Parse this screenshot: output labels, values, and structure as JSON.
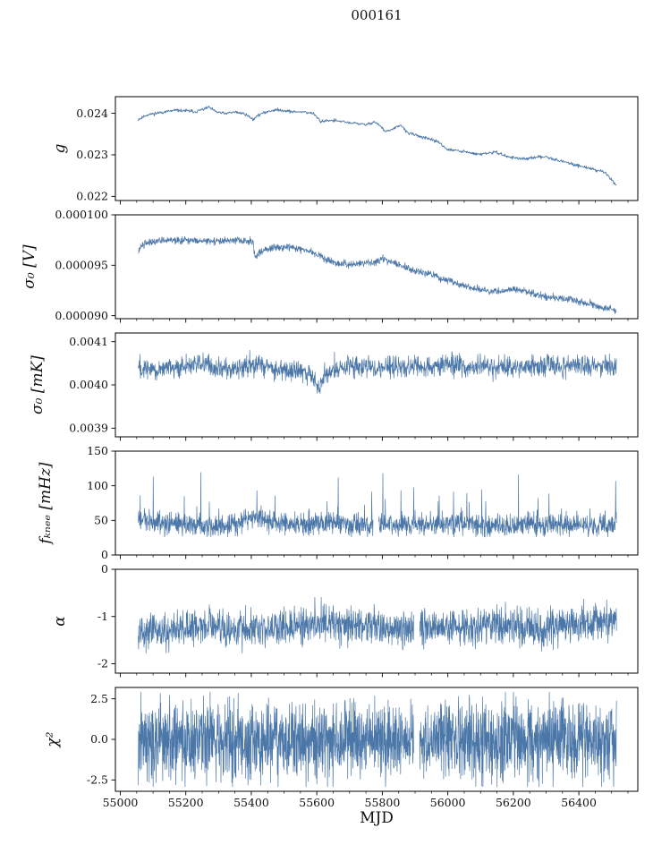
{
  "accent_color": "#4a76a8",
  "chart_data": {
    "type": "line",
    "title": "000161",
    "xlabel": "MJD",
    "legend": "none",
    "grid": false,
    "x_axis": {
      "xlim": [
        54985,
        56580
      ],
      "xticks": [
        55000,
        55200,
        55400,
        55600,
        55800,
        56000,
        56200,
        56400
      ],
      "xtick_labels": [
        "55000",
        "55200",
        "55400",
        "55600",
        "55800",
        "56000",
        "56200",
        "56400"
      ],
      "minor_step": 50,
      "data_range": [
        55055,
        56515
      ]
    },
    "panels": [
      {
        "name": "g",
        "ylabel": "g",
        "ylim": [
          0.0219,
          0.0244
        ],
        "yticks": [
          0.022,
          0.023,
          0.024
        ],
        "ytick_labels": [
          "0.022",
          "0.023",
          "0.024"
        ],
        "ylabel_x": 72,
        "trend_x": [
          55055,
          55080,
          55110,
          55140,
          55170,
          55200,
          55230,
          55255,
          55270,
          55290,
          55320,
          55350,
          55380,
          55405,
          55420,
          55445,
          55470,
          55500,
          55530,
          55560,
          55590,
          55612,
          55630,
          55660,
          55690,
          55720,
          55750,
          55775,
          55790,
          55810,
          55835,
          55855,
          55880,
          55910,
          55940,
          55970,
          56000,
          56030,
          56060,
          56090,
          56120,
          56150,
          56180,
          56210,
          56240,
          56270,
          56300,
          56330,
          56360,
          56390,
          56420,
          56450,
          56480,
          56500,
          56515
        ],
        "trend_y": [
          0.02385,
          0.02396,
          0.024,
          0.02404,
          0.02407,
          0.02406,
          0.02404,
          0.0241,
          0.02415,
          0.02404,
          0.02399,
          0.02403,
          0.02399,
          0.02385,
          0.02395,
          0.02403,
          0.02408,
          0.02407,
          0.02403,
          0.02404,
          0.02399,
          0.0238,
          0.02383,
          0.02382,
          0.02378,
          0.02376,
          0.02372,
          0.0238,
          0.02372,
          0.02356,
          0.02362,
          0.02372,
          0.02352,
          0.02346,
          0.02338,
          0.02332,
          0.02312,
          0.0231,
          0.02306,
          0.02301,
          0.02304,
          0.02306,
          0.02296,
          0.02292,
          0.0229,
          0.02294,
          0.02296,
          0.02288,
          0.02282,
          0.02276,
          0.0227,
          0.02264,
          0.02258,
          0.0224,
          0.02228
        ],
        "noise_sigma": 1.8e-05,
        "n_points": 900,
        "clip": [
          0.02195,
          0.02435
        ],
        "gaps": [],
        "seed": 11,
        "stroke_width": 0.9
      },
      {
        "name": "sigma0-v",
        "ylabel": "σ₀ [V]",
        "ylim": [
          8.97e-05,
          0.0001
        ],
        "yticks": [
          9e-05,
          9.5e-05,
          0.0001
        ],
        "ytick_labels": [
          "0.000090",
          "0.000095",
          "0.000100"
        ],
        "ylabel_x": 38,
        "trend_x": [
          55055,
          55062,
          55075,
          55100,
          55140,
          55180,
          55220,
          55260,
          55300,
          55340,
          55380,
          55404,
          55412,
          55425,
          55450,
          55480,
          55520,
          55555,
          55585,
          55610,
          55635,
          55660,
          55700,
          55740,
          55775,
          55800,
          55830,
          55860,
          55890,
          55920,
          55950,
          55980,
          56010,
          56040,
          56070,
          56100,
          56130,
          56160,
          56190,
          56220,
          56250,
          56280,
          56310,
          56340,
          56370,
          56400,
          56430,
          56460,
          56485,
          56515
        ],
        "trend_y": [
          9.62e-05,
          9.68e-05,
          9.72e-05,
          9.74e-05,
          9.75e-05,
          9.74e-05,
          9.75e-05,
          9.74e-05,
          9.74e-05,
          9.75e-05,
          9.74e-05,
          9.74e-05,
          9.58e-05,
          9.63e-05,
          9.66e-05,
          9.68e-05,
          9.68e-05,
          9.66e-05,
          9.63e-05,
          9.6e-05,
          9.54e-05,
          9.52e-05,
          9.51e-05,
          9.52e-05,
          9.53e-05,
          9.56e-05,
          9.53e-05,
          9.5e-05,
          9.46e-05,
          9.43e-05,
          9.41e-05,
          9.37e-05,
          9.34e-05,
          9.31e-05,
          9.28e-05,
          9.26e-05,
          9.24e-05,
          9.24e-05,
          9.26e-05,
          9.25e-05,
          9.23e-05,
          9.2e-05,
          9.18e-05,
          9.17e-05,
          9.16e-05,
          9.14e-05,
          9.12e-05,
          9.09e-05,
          9.07e-05,
          9.05e-05
        ],
        "noise_sigma": 1.8e-07,
        "n_points": 1600,
        "clip": [
          8.99e-05,
          9.98e-05
        ],
        "gaps": [],
        "seed": 22,
        "stroke_width": 0.7
      },
      {
        "name": "sigma0-mk",
        "ylabel": "σ₀ [mK]",
        "ylim": [
          0.00388,
          0.00412
        ],
        "yticks": [
          0.0039,
          0.004,
          0.0041
        ],
        "ytick_labels": [
          "0.0039",
          "0.0040",
          "0.0041"
        ],
        "ylabel_x": 47,
        "trend_x": [
          55055,
          55120,
          55180,
          55240,
          55300,
          55360,
          55410,
          55450,
          55500,
          55550,
          55590,
          55605,
          55625,
          55660,
          55720,
          55790,
          55860,
          55930,
          56000,
          56070,
          56140,
          56210,
          56280,
          56350,
          56420,
          56515
        ],
        "trend_y": [
          0.004042,
          0.004035,
          0.00404,
          0.004048,
          0.004042,
          0.004035,
          0.004052,
          0.00404,
          0.00403,
          0.004032,
          0.00402,
          0.003985,
          0.004025,
          0.004038,
          0.004042,
          0.00404,
          0.004043,
          0.00404,
          0.004046,
          0.00404,
          0.004044,
          0.004042,
          0.004046,
          0.004042,
          0.004045,
          0.004042
        ],
        "noise_sigma": 1.2e-05,
        "n_points": 1700,
        "clip": [
          0.003925,
          0.004115
        ],
        "gaps": [],
        "seed": 33,
        "stroke_width": 0.7
      },
      {
        "name": "fknee",
        "ylabel": "fₖₙₑₑ [mHz]",
        "ylim": [
          0,
          150
        ],
        "yticks": [
          0,
          50,
          100,
          150
        ],
        "ytick_labels": [
          "0",
          "50",
          "100",
          "150"
        ],
        "ylabel_x": 56,
        "trend_x": [
          55055,
          55120,
          55200,
          55280,
          55360,
          55420,
          55480,
          55560,
          55640,
          55720,
          55800,
          55880,
          55960,
          56040,
          56120,
          56200,
          56280,
          56360,
          56440,
          56515
        ],
        "trend_y": [
          50,
          46,
          44,
          40,
          48,
          55,
          46,
          44,
          46,
          43,
          45,
          42,
          44,
          45,
          42,
          45,
          43,
          45,
          44,
          42
        ],
        "noise_sigma": 8,
        "n_points": 1800,
        "clip": [
          26,
          138
        ],
        "gaps": [
          [
            55772,
            55788
          ]
        ],
        "spike": {
          "prob": 0.015,
          "base": 20,
          "range": 55
        },
        "seed": 44,
        "stroke_width": 0.7
      },
      {
        "name": "alpha",
        "ylabel": "α",
        "ylim": [
          -2.2,
          0
        ],
        "yticks": [
          -2,
          -1,
          0
        ],
        "ytick_labels": [
          "-2",
          "-1",
          "0"
        ],
        "ylabel_x": 72,
        "trend_x": [
          55055,
          55150,
          55250,
          55350,
          55450,
          55550,
          55650,
          55750,
          55850,
          55950,
          56050,
          56150,
          56250,
          56350,
          56450,
          56515
        ],
        "trend_y": [
          -1.32,
          -1.28,
          -1.22,
          -1.3,
          -1.28,
          -1.18,
          -1.12,
          -1.2,
          -1.25,
          -1.2,
          -1.22,
          -1.18,
          -1.2,
          -1.18,
          -1.12,
          -1.1
        ],
        "noise_sigma": 0.19,
        "n_points": 1800,
        "clip": [
          -1.92,
          -0.5
        ],
        "gaps": [
          [
            55896,
            55914
          ]
        ],
        "seed": 55,
        "stroke_width": 0.7
      },
      {
        "name": "chi2",
        "ylabel": "χ²",
        "ylim": [
          -3.2,
          3.2
        ],
        "yticks": [
          -2.5,
          0.0,
          2.5
        ],
        "ytick_labels": [
          "-2.5",
          "0.0",
          "2.5"
        ],
        "ylabel_x": 64,
        "trend_x": [
          55055,
          56515
        ],
        "trend_y": [
          0,
          0
        ],
        "noise_sigma": 1.2,
        "n_points": 2200,
        "clip": [
          -2.92,
          2.92
        ],
        "gaps": [
          [
            55896,
            55914
          ]
        ],
        "seed": 66,
        "stroke_width": 0.7
      }
    ]
  }
}
